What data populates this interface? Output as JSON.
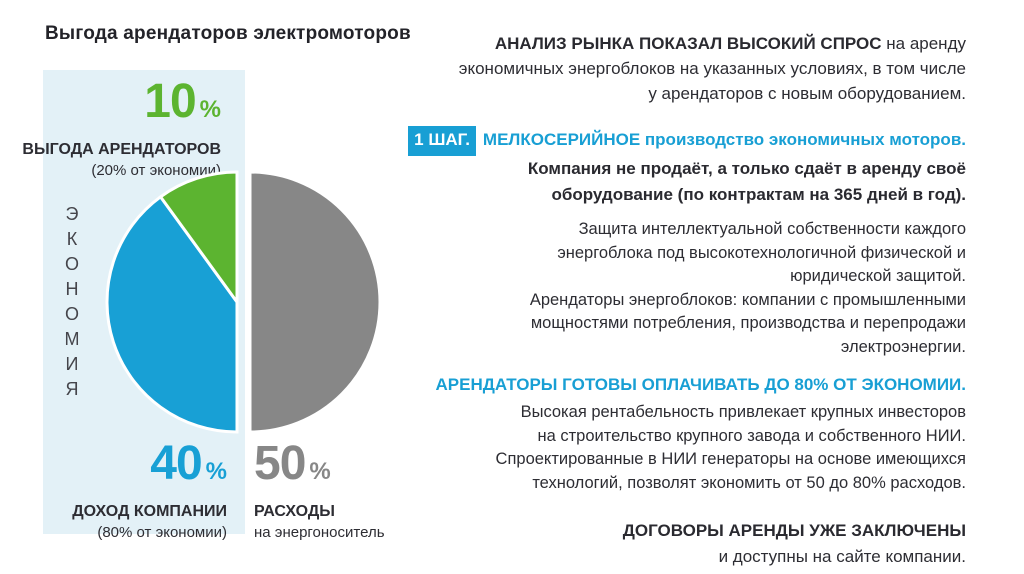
{
  "colors": {
    "accent_blue": "#189fd4",
    "pie_green": "#5cb430",
    "pie_blue": "#18a0d5",
    "pie_gray": "#878787",
    "dark_text": "#2d2d33",
    "panel_bg": "#e3f1f7"
  },
  "left_panel": {
    "title": "Выгода арендаторов электромоторов",
    "economy_label": "ЭКОНОМИЯ",
    "green_segment": {
      "value": "10",
      "unit": "%",
      "label": "ВЫГОДА АРЕНДАТОРОВ",
      "sub": "(20% от экономии)"
    },
    "blue_segment": {
      "value": "40",
      "unit": "%",
      "label": "ДОХОД КОМПАНИИ",
      "sub": "(80% от экономии)"
    },
    "gray_segment": {
      "value": "50",
      "unit": "%",
      "label": "РАСХОДЫ",
      "sub": "на энергоноситель"
    }
  },
  "chart_data": {
    "type": "pie",
    "title": "Выгода арендаторов электромоторов",
    "center_word": "ЭКОНОМИЯ",
    "legend_position": "around",
    "slices": [
      {
        "label": "ВЫГОДА АРЕНДАТОРОВ (20% от экономии)",
        "value": 10,
        "color": "#5cb430",
        "exploded": false
      },
      {
        "label": "ДОХОД КОМПАНИИ (80% от экономии)",
        "value": 40,
        "color": "#18a0d5",
        "exploded": false
      },
      {
        "label": "РАСХОДЫ на энергоноситель",
        "value": 50,
        "color": "#878787",
        "exploded": true
      }
    ]
  },
  "right_panel": {
    "intro": {
      "bold": "АНАЛИЗ РЫНКА ПОКАЗАЛ ВЫСОКИЙ СПРОС",
      "line1_rest": " на аренду",
      "line2": "экономичных энергоблоков на указанных условиях, в том числе",
      "line3": "у арендаторов с новым оборудованием."
    },
    "step": {
      "badge": "1 ШАГ.",
      "headline": "МЕЛКОСЕРИЙНОЕ производство экономичных моторов.",
      "line2": "Компания не продаёт, а только сдаёт в аренду своё",
      "line3": "оборудование (по контрактам на 365 дней в год)."
    },
    "protection": {
      "lines": [
        "Защита интеллектуальной собственности каждого",
        "энергоблока под высокотехнологичной физической и",
        "юридической защитой.",
        "Арендаторы энергоблоков: компании с промышленными",
        "мощностями потребления, производства и перепродажи",
        "электроэнергии."
      ]
    },
    "payment": {
      "headline": "АРЕНДАТОРЫ ГОТОВЫ ОПЛАЧИВАТЬ ДО 80% ОТ ЭКОНОМИИ.",
      "lines": [
        "Высокая рентабельность привлекает крупных инвесторов",
        "на строительство крупного завода и собственного НИИ.",
        "Спроектированные в НИИ генераторы на основе имеющихся",
        "технологий, позволят экономить от 50 до 80% расходов."
      ]
    },
    "contracts": {
      "bold": "ДОГОВОРЫ АРЕНДЫ УЖЕ ЗАКЛЮЧЕНЫ",
      "line2": "и доступны на сайте компании."
    }
  }
}
